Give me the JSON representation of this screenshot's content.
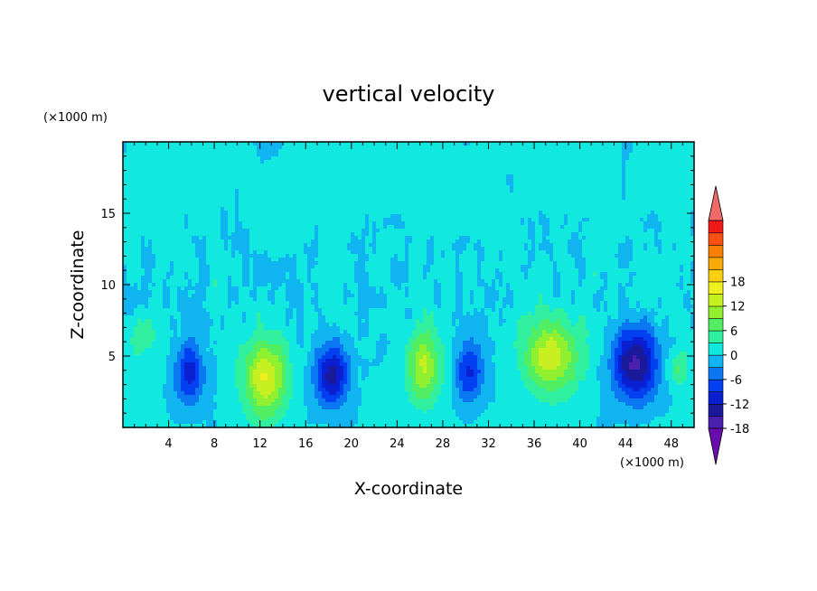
{
  "chart_data": {
    "type": "heatmap",
    "title": "vertical velocity",
    "xlabel": "X-coordinate",
    "ylabel": "Z-coordinate",
    "x_unit": "(×1000 m)",
    "y_unit": "(×1000 m)",
    "xlim": [
      0,
      50
    ],
    "ylim": [
      0,
      20
    ],
    "x_ticks": [
      4,
      8,
      12,
      16,
      20,
      24,
      28,
      32,
      36,
      40,
      44,
      48
    ],
    "y_ticks": [
      5,
      10,
      15
    ],
    "colorbar": {
      "min": -21,
      "max": 21,
      "step": 3,
      "tick_labels": [
        18,
        12,
        6,
        0,
        -6,
        -12,
        -18
      ],
      "extend": "both",
      "colors": [
        "#6a0dad",
        "#4b1fb0",
        "#1a1a9a",
        "#0a1fd0",
        "#0040f0",
        "#0a78f0",
        "#10b4f0",
        "#10e8e0",
        "#30f0a0",
        "#50ee60",
        "#90f030",
        "#c8f020",
        "#f0f020",
        "#f8d010",
        "#f8a808",
        "#f88000",
        "#f85010",
        "#f01a1a",
        "#f06a6a"
      ]
    },
    "features": [
      {
        "x": 1.8,
        "z": 6.5,
        "w": 1.1,
        "h": 1.5,
        "value": 6
      },
      {
        "x": 5.8,
        "z": 3.8,
        "w": 1.3,
        "h": 2.2,
        "value": -11
      },
      {
        "x": 12.5,
        "z": 3.5,
        "w": 1.9,
        "h": 2.8,
        "value": 15
      },
      {
        "x": 18.3,
        "z": 3.7,
        "w": 1.5,
        "h": 2.2,
        "value": -14
      },
      {
        "x": 26.3,
        "z": 4.3,
        "w": 1.4,
        "h": 2.5,
        "value": 12
      },
      {
        "x": 30.3,
        "z": 4.0,
        "w": 1.2,
        "h": 2.2,
        "value": -10
      },
      {
        "x": 37.5,
        "z": 5.0,
        "w": 2.3,
        "h": 2.6,
        "value": 14
      },
      {
        "x": 44.8,
        "z": 4.5,
        "w": 2.0,
        "h": 2.6,
        "value": -16
      },
      {
        "x": 48.6,
        "z": 4.2,
        "w": 0.9,
        "h": 1.4,
        "value": 6
      }
    ]
  }
}
